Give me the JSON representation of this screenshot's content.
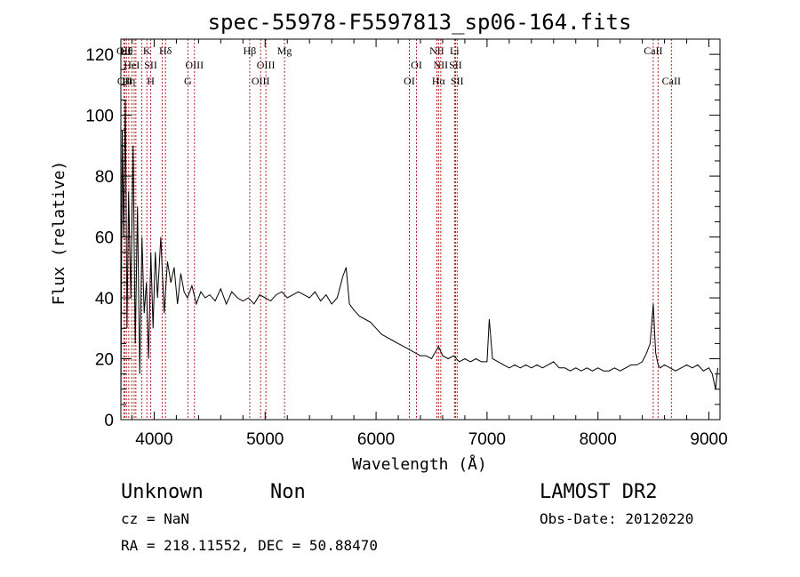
{
  "title": "spec-55978-F5597813_sp06-164.fits",
  "footer": {
    "class": "Unknown",
    "subclass": "Non",
    "cz": "cz = NaN",
    "radec": "RA = 218.11552, DEC =  50.88470",
    "survey": "LAMOST DR2",
    "obsdate": "Obs-Date: 20120220"
  },
  "chart_data": {
    "type": "line",
    "title": "spec-55978-F5597813_sp06-164.fits",
    "xlabel": "Wavelength (Å)",
    "ylabel": "Flux (relative)",
    "xlim": [
      3700,
      9100
    ],
    "ylim": [
      0,
      125
    ],
    "x_ticks": [
      "4000",
      "5000",
      "6000",
      "7000",
      "8000",
      "9000"
    ],
    "x_tick_values": [
      4000,
      5000,
      6000,
      7000,
      8000,
      9000
    ],
    "y_ticks": [
      "0",
      "20",
      "40",
      "60",
      "80",
      "100",
      "120"
    ],
    "y_tick_values": [
      0,
      20,
      40,
      60,
      80,
      100,
      120
    ],
    "line_color": "#000000",
    "marker_color": "#b22222",
    "series": [
      {
        "x": [
          3700,
          3712,
          3725,
          3740,
          3755,
          3770,
          3790,
          3810,
          3830,
          3850,
          3870,
          3890,
          3910,
          3930,
          3950,
          3970,
          3990,
          4010,
          4030,
          4060,
          4090,
          4120,
          4150,
          4180,
          4210,
          4240,
          4270,
          4300,
          4340,
          4380,
          4420,
          4460,
          4500,
          4550,
          4600,
          4650,
          4700,
          4750,
          4800,
          4850,
          4900,
          4950,
          5000,
          5050,
          5100,
          5150,
          5200,
          5250,
          5300,
          5350,
          5400,
          5450,
          5500,
          5550,
          5600,
          5650,
          5700,
          5730,
          5760,
          5800,
          5850,
          5900,
          5950,
          6000,
          6050,
          6100,
          6150,
          6200,
          6250,
          6300,
          6350,
          6400,
          6450,
          6500,
          6563,
          6600,
          6650,
          6700,
          6750,
          6800,
          6850,
          6900,
          6950,
          7000,
          7020,
          7050,
          7100,
          7150,
          7200,
          7250,
          7300,
          7350,
          7400,
          7450,
          7500,
          7550,
          7600,
          7650,
          7700,
          7750,
          7800,
          7850,
          7900,
          7950,
          8000,
          8050,
          8100,
          8150,
          8200,
          8250,
          8300,
          8350,
          8400,
          8440,
          8470,
          8498,
          8520,
          8542,
          8560,
          8600,
          8650,
          8700,
          8750,
          8800,
          8850,
          8900,
          8950,
          9000,
          9030,
          9060,
          9080
        ],
        "y": [
          5,
          95,
          60,
          105,
          30,
          75,
          40,
          90,
          25,
          70,
          15,
          60,
          35,
          45,
          20,
          55,
          30,
          55,
          40,
          60,
          35,
          52,
          45,
          50,
          38,
          48,
          42,
          40,
          44,
          38,
          42,
          40,
          41,
          39,
          43,
          38,
          42,
          40,
          39,
          40,
          38,
          41,
          40,
          39,
          41,
          42,
          40,
          41,
          42,
          41,
          40,
          42,
          39,
          41,
          38,
          40,
          47,
          50,
          38,
          36,
          34,
          33,
          32,
          30,
          28,
          27,
          26,
          25,
          24,
          23,
          22,
          21,
          21,
          20,
          24,
          21,
          20,
          21,
          19,
          20,
          19,
          20,
          19,
          19,
          33,
          20,
          19,
          18,
          17,
          18,
          17,
          18,
          17,
          18,
          17,
          18,
          19,
          17,
          17,
          16,
          17,
          16,
          17,
          16,
          17,
          16,
          16,
          17,
          16,
          17,
          18,
          18,
          19,
          22,
          25,
          38,
          22,
          18,
          17,
          18,
          17,
          16,
          17,
          18,
          17,
          18,
          16,
          17,
          15,
          10,
          17
        ]
      }
    ],
    "lines": [
      {
        "w": 3727,
        "top": "OII",
        "mid": "",
        "bot": ""
      },
      {
        "w": 3734,
        "top": "",
        "mid": "",
        "bot": "OII"
      },
      {
        "w": 3750,
        "top": "Hθ",
        "mid": "",
        "bot": ""
      },
      {
        "w": 3771,
        "top": "",
        "mid": "",
        "bot": "Hη"
      },
      {
        "w": 3798,
        "top": "",
        "mid": "HeI",
        "bot": ""
      },
      {
        "w": 3820,
        "top": "",
        "mid": "",
        "bot": ""
      },
      {
        "w": 3835,
        "top": "",
        "mid": "",
        "bot": ""
      },
      {
        "w": 3889,
        "top": "",
        "mid": "",
        "bot": ""
      },
      {
        "w": 3934,
        "top": "K",
        "mid": "",
        "bot": ""
      },
      {
        "w": 3969,
        "top": "",
        "mid": "SII",
        "bot": "H"
      },
      {
        "w": 4072,
        "top": "",
        "mid": "",
        "bot": ""
      },
      {
        "w": 4102,
        "top": "Hδ",
        "mid": "",
        "bot": ""
      },
      {
        "w": 4304,
        "top": "",
        "mid": "",
        "bot": "G"
      },
      {
        "w": 4363,
        "top": "",
        "mid": "OIII",
        "bot": ""
      },
      {
        "w": 4861,
        "top": "Hβ",
        "mid": "",
        "bot": ""
      },
      {
        "w": 4959,
        "top": "",
        "mid": "",
        "bot": "OIII"
      },
      {
        "w": 5007,
        "top": "",
        "mid": "OIII",
        "bot": ""
      },
      {
        "w": 5175,
        "top": "Mg",
        "mid": "",
        "bot": ""
      },
      {
        "w": 6300,
        "top": "",
        "mid": "",
        "bot": "OI"
      },
      {
        "w": 6364,
        "top": "",
        "mid": "OI",
        "bot": ""
      },
      {
        "w": 6548,
        "top": "NII",
        "mid": "",
        "bot": ""
      },
      {
        "w": 6563,
        "top": "",
        "mid": "",
        "bot": "Hα"
      },
      {
        "w": 6583,
        "top": "",
        "mid": "NII",
        "bot": ""
      },
      {
        "w": 6707,
        "top": "Li",
        "mid": "",
        "bot": ""
      },
      {
        "w": 6716,
        "top": "",
        "mid": "SII",
        "bot": ""
      },
      {
        "w": 6731,
        "top": "",
        "mid": "",
        "bot": "SII"
      },
      {
        "w": 8498,
        "top": "CaII",
        "mid": "",
        "bot": ""
      },
      {
        "w": 8542,
        "top": "",
        "mid": "",
        "bot": ""
      },
      {
        "w": 8662,
        "top": "",
        "mid": "",
        "bot": "CaII"
      }
    ]
  }
}
